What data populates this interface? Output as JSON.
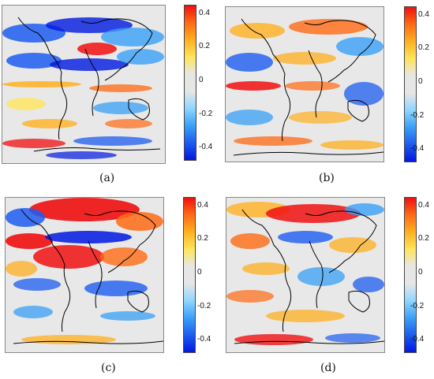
{
  "colorscale": {
    "stops": [
      "#0018e0",
      "#1d5cf0",
      "#3aa0f7",
      "#8fd6ff",
      "#e6e6e6",
      "#e6e6e6",
      "#ffe55a",
      "#ffb020",
      "#ff6a14",
      "#f01010"
    ],
    "ticks": [
      "0.4",
      "0.2",
      "0",
      "-0.2",
      "-0.4"
    ]
  },
  "panels": [
    {
      "id": "a",
      "caption": "(a)"
    },
    {
      "id": "b",
      "caption": "(b)"
    },
    {
      "id": "c",
      "caption": "(c)"
    },
    {
      "id": "d",
      "caption": "(d)"
    }
  ]
}
